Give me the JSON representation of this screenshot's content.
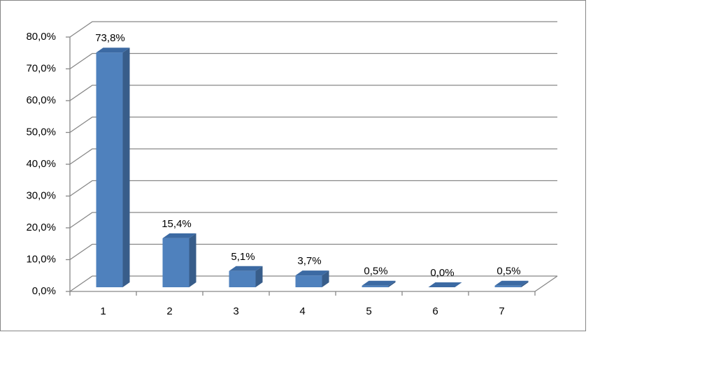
{
  "chart_data": {
    "type": "bar3d",
    "categories": [
      "1",
      "2",
      "3",
      "4",
      "5",
      "6",
      "7"
    ],
    "values": [
      73.8,
      15.4,
      5.1,
      3.7,
      0.5,
      0.0,
      0.5
    ],
    "value_labels": [
      "73,8%",
      "15,4%",
      "5,1%",
      "3,7%",
      "0,5%",
      "0,0%",
      "0,5%"
    ],
    "color": "#4f81bd",
    "ylim": [
      0,
      80
    ],
    "yticks": [
      {
        "value": 0,
        "label": "0,0%"
      },
      {
        "value": 10,
        "label": "10,0%"
      },
      {
        "value": 20,
        "label": "20,0%"
      },
      {
        "value": 30,
        "label": "30,0%"
      },
      {
        "value": 40,
        "label": "40,0%"
      },
      {
        "value": 50,
        "label": "50,0%"
      },
      {
        "value": 60,
        "label": "60,0%"
      },
      {
        "value": 70,
        "label": "70,0%"
      },
      {
        "value": 80,
        "label": "80,0%"
      }
    ],
    "grid": true
  }
}
